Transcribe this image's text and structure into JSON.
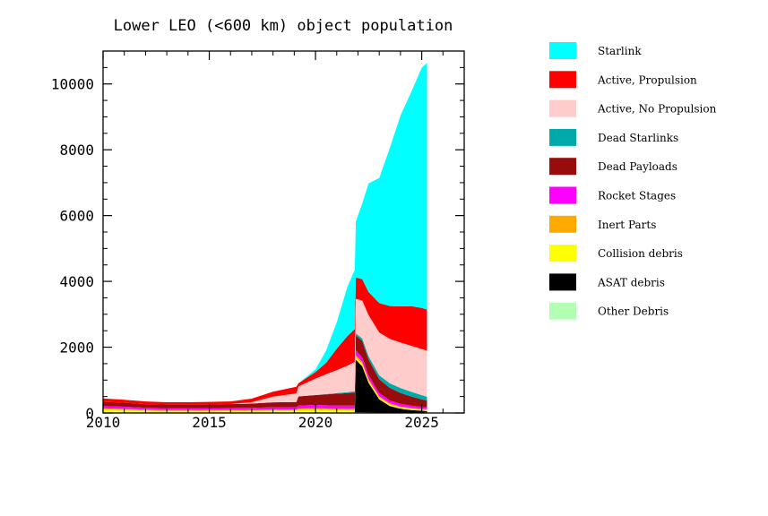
{
  "chart_data": {
    "type": "area",
    "stacked": true,
    "title": "Lower LEO (<600 km) object population",
    "xlabel": "",
    "ylabel": "",
    "xlim": [
      2010,
      2027
    ],
    "ylim": [
      0,
      11000
    ],
    "x_ticks": [
      2010,
      2015,
      2020,
      2025
    ],
    "x_tick_labels": [
      "2010",
      "2015",
      "2020",
      "2025"
    ],
    "y_ticks": [
      0,
      2000,
      4000,
      6000,
      8000,
      10000
    ],
    "y_tick_labels": [
      "0",
      "2000",
      "4000",
      "6000",
      "8000",
      "10000"
    ],
    "grid": false,
    "legend_position": "right",
    "x": [
      2010,
      2011,
      2012,
      2013,
      2014,
      2015,
      2016,
      2017,
      2018,
      2019.1,
      2019.2,
      2020,
      2020.5,
      2021,
      2021.5,
      2021.85,
      2021.9,
      2022.2,
      2022.5,
      2023,
      2023.5,
      2024,
      2024.5,
      2025,
      2025.25
    ],
    "series": [
      {
        "name": "Other Debris",
        "color": "#b3ffb3",
        "values": [
          20,
          18,
          15,
          12,
          12,
          12,
          12,
          12,
          15,
          15,
          15,
          15,
          15,
          15,
          15,
          15,
          20,
          18,
          16,
          14,
          12,
          10,
          10,
          8,
          8
        ]
      },
      {
        "name": "ASAT debris",
        "color": "#000000",
        "values": [
          0,
          0,
          0,
          0,
          0,
          0,
          0,
          0,
          0,
          0,
          0,
          0,
          0,
          0,
          0,
          0,
          1600,
          1400,
          900,
          400,
          200,
          120,
          80,
          60,
          50
        ]
      },
      {
        "name": "Collision debris",
        "color": "#ffff00",
        "values": [
          90,
          80,
          60,
          50,
          50,
          50,
          55,
          55,
          60,
          60,
          80,
          90,
          80,
          70,
          70,
          70,
          80,
          70,
          60,
          50,
          45,
          40,
          35,
          30,
          30
        ]
      },
      {
        "name": "Inert Parts",
        "color": "#ffaa00",
        "values": [
          30,
          28,
          25,
          25,
          25,
          25,
          25,
          25,
          30,
          30,
          40,
          40,
          40,
          40,
          40,
          40,
          60,
          60,
          50,
          40,
          35,
          30,
          30,
          25,
          25
        ]
      },
      {
        "name": "Rocket Stages",
        "color": "#ff00ff",
        "values": [
          70,
          65,
          60,
          60,
          60,
          60,
          60,
          65,
          70,
          70,
          90,
          100,
          100,
          100,
          100,
          100,
          150,
          140,
          120,
          100,
          90,
          80,
          70,
          60,
          60
        ]
      },
      {
        "name": "Dead Payloads",
        "color": "#990c0c",
        "values": [
          130,
          120,
          110,
          110,
          110,
          110,
          120,
          130,
          150,
          160,
          280,
          300,
          330,
          360,
          380,
          390,
          450,
          500,
          480,
          420,
          380,
          330,
          280,
          230,
          200
        ]
      },
      {
        "name": "Dead Starlinks",
        "color": "#00aaaa",
        "values": [
          0,
          0,
          0,
          0,
          0,
          0,
          0,
          0,
          0,
          0,
          0,
          0,
          10,
          20,
          30,
          40,
          60,
          80,
          100,
          120,
          140,
          150,
          140,
          130,
          120
        ]
      },
      {
        "name": "Active, No Propulsion",
        "color": "#ffcccc",
        "values": [
          0,
          0,
          0,
          0,
          0,
          0,
          0,
          40,
          170,
          260,
          300,
          500,
          600,
          700,
          800,
          900,
          1050,
          1150,
          1250,
          1300,
          1350,
          1380,
          1400,
          1400,
          1400
        ]
      },
      {
        "name": "Active, Propulsion",
        "color": "#ff0000",
        "values": [
          100,
          90,
          80,
          70,
          70,
          80,
          80,
          110,
          150,
          200,
          100,
          200,
          350,
          650,
          900,
          1000,
          650,
          650,
          700,
          900,
          1000,
          1100,
          1200,
          1250,
          1250
        ]
      },
      {
        "name": "Starlink",
        "color": "#00ffff",
        "values": [
          0,
          0,
          0,
          0,
          0,
          0,
          0,
          0,
          0,
          0,
          0,
          80,
          375,
          800,
          1500,
          1800,
          1700,
          2300,
          3300,
          3800,
          4800,
          5800,
          6500,
          7300,
          7500
        ]
      }
    ]
  }
}
